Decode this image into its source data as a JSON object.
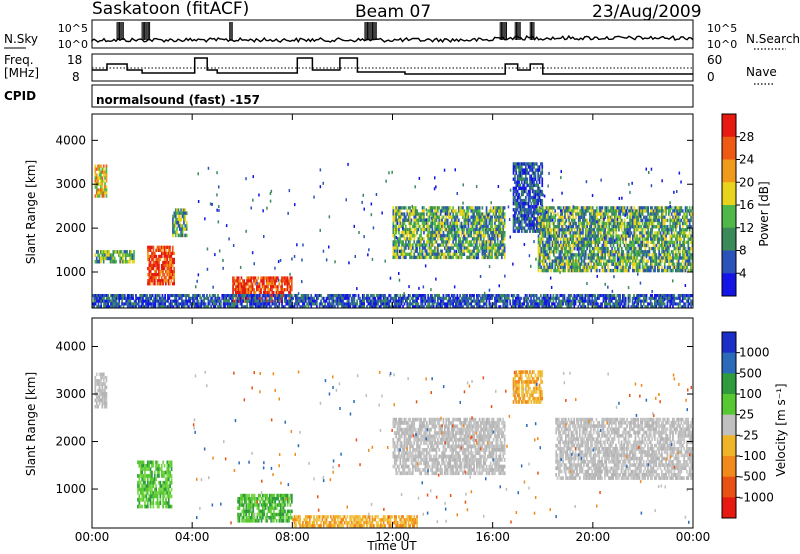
{
  "header": {
    "station": "Saskatoon (fitACF)",
    "beam": "Beam 07",
    "date": "23/Aug/2009"
  },
  "nsky_panel": {
    "left_label": "N.Sky",
    "right_label": "N.Search",
    "ticks_left": [
      "10^5",
      "10^0"
    ],
    "ticks_right": [
      "10^5",
      "10^0"
    ]
  },
  "freq_panel": {
    "left_label_line1": "Freq.",
    "left_label_line2": "[MHz]",
    "right_label": "Nave",
    "ticks_left": [
      "18",
      "8"
    ],
    "ticks_right": [
      "60",
      "0"
    ]
  },
  "cpid": {
    "label": "CPID",
    "value": "normalsound (fast) -157"
  },
  "colors": {
    "power_scale": [
      "#1414e6",
      "#2a52b8",
      "#3a8a5a",
      "#4fb848",
      "#e8d41c",
      "#f09a1c",
      "#ee5a14",
      "#e61a10"
    ],
    "velocity_scale": [
      "#1c2ec8",
      "#2a6ab8",
      "#2f9a3e",
      "#58c832",
      "#c0c0c0",
      "#f0b428",
      "#f08a1c",
      "#e85014",
      "#e61a10"
    ],
    "velocity_gray": "#bebebe"
  },
  "chart_data": [
    {
      "type": "heatmap",
      "name": "power_panel",
      "ylabel": "Slant Range [km]",
      "yticks": [
        "1000",
        "2000",
        "3000",
        "4000"
      ],
      "ylim": [
        180,
        4600
      ],
      "xticks": [
        "00:00",
        "04:00",
        "08:00",
        "12:00",
        "16:00",
        "20:00",
        "00:00"
      ],
      "xlim_hours": [
        0,
        24
      ],
      "colorbar_label": "Power [dB]",
      "colorbar_ticks": [
        "4",
        "8",
        "12",
        "16",
        "20",
        "24",
        "28"
      ],
      "regions": [
        {
          "t0": 0.1,
          "t1": 0.6,
          "r0": 2700,
          "r1": 3450,
          "value": "high"
        },
        {
          "t0": 0.1,
          "t1": 1.7,
          "r0": 1200,
          "r1": 1500,
          "value": "mid"
        },
        {
          "t0": 2.2,
          "t1": 3.3,
          "r0": 700,
          "r1": 1600,
          "value": "very_high"
        },
        {
          "t0": 3.2,
          "t1": 3.8,
          "r0": 1800,
          "r1": 2450,
          "value": "mid"
        },
        {
          "t0": 5.6,
          "t1": 8.0,
          "r0": 300,
          "r1": 900,
          "value": "very_high"
        },
        {
          "t0": 12.0,
          "t1": 16.5,
          "r0": 1300,
          "r1": 2500,
          "value": "mid"
        },
        {
          "t0": 16.8,
          "t1": 18.0,
          "r0": 1900,
          "r1": 3500,
          "value": "low"
        },
        {
          "t0": 17.8,
          "t1": 24.0,
          "r0": 1000,
          "r1": 2500,
          "value": "mid"
        },
        {
          "t0": 0.0,
          "t1": 24.0,
          "r0": 180,
          "r1": 500,
          "value": "low"
        }
      ]
    },
    {
      "type": "heatmap",
      "name": "velocity_panel",
      "ylabel": "Slant Range [km]",
      "yticks": [
        "1000",
        "2000",
        "3000",
        "4000"
      ],
      "ylim": [
        180,
        4600
      ],
      "xticks": [
        "00:00",
        "04:00",
        "08:00",
        "12:00",
        "16:00",
        "20:00",
        "00:00"
      ],
      "xlim_hours": [
        0,
        24
      ],
      "xlabel": "Time UT",
      "colorbar_label": "Velocity [m s⁻¹]",
      "colorbar_ticks": [
        "1000",
        "500",
        "100",
        "25",
        "-25",
        "-100",
        "-500",
        "-1000"
      ],
      "regions": [
        {
          "t0": 0.1,
          "t1": 0.6,
          "r0": 2700,
          "r1": 3450,
          "value": "gray"
        },
        {
          "t0": 1.8,
          "t1": 3.2,
          "r0": 600,
          "r1": 1600,
          "value": "green"
        },
        {
          "t0": 5.8,
          "t1": 8.0,
          "r0": 300,
          "r1": 900,
          "value": "green"
        },
        {
          "t0": 8.0,
          "t1": 13.0,
          "r0": 200,
          "r1": 450,
          "value": "orange"
        },
        {
          "t0": 12.0,
          "t1": 16.5,
          "r0": 1300,
          "r1": 2500,
          "value": "gray"
        },
        {
          "t0": 16.8,
          "t1": 18.0,
          "r0": 2800,
          "r1": 3500,
          "value": "orange"
        },
        {
          "t0": 18.5,
          "t1": 24.0,
          "r0": 1200,
          "r1": 2500,
          "value": "gray"
        }
      ]
    }
  ]
}
